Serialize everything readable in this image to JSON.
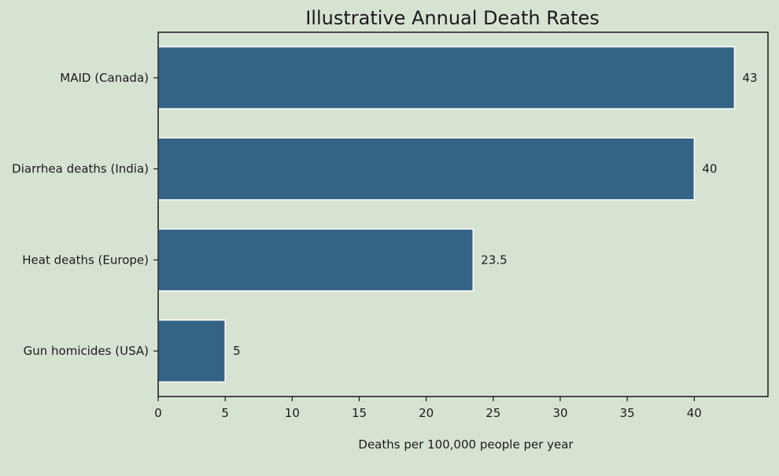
{
  "chart_data": {
    "type": "bar",
    "orientation": "horizontal",
    "title": "Illustrative Annual Death Rates",
    "xlabel": "Deaths per 100,000 people per year",
    "ylabel": "",
    "categories": [
      "MAID (Canada)",
      "Diarrhea deaths (India)",
      "Heat deaths (Europe)",
      "Gun homicides (USA)"
    ],
    "values": [
      43,
      40,
      23.5,
      5
    ],
    "value_labels": [
      "43",
      "40",
      "23.5",
      "5"
    ],
    "xlim": [
      0,
      45.5
    ],
    "xticks": [
      0,
      5,
      10,
      15,
      20,
      25,
      30,
      35,
      40
    ],
    "xtick_labels": [
      "0",
      "5",
      "10",
      "15",
      "20",
      "25",
      "30",
      "35",
      "40"
    ],
    "grid": false,
    "colors": {
      "bar": "#346385",
      "background": "#d7e3d2"
    }
  }
}
